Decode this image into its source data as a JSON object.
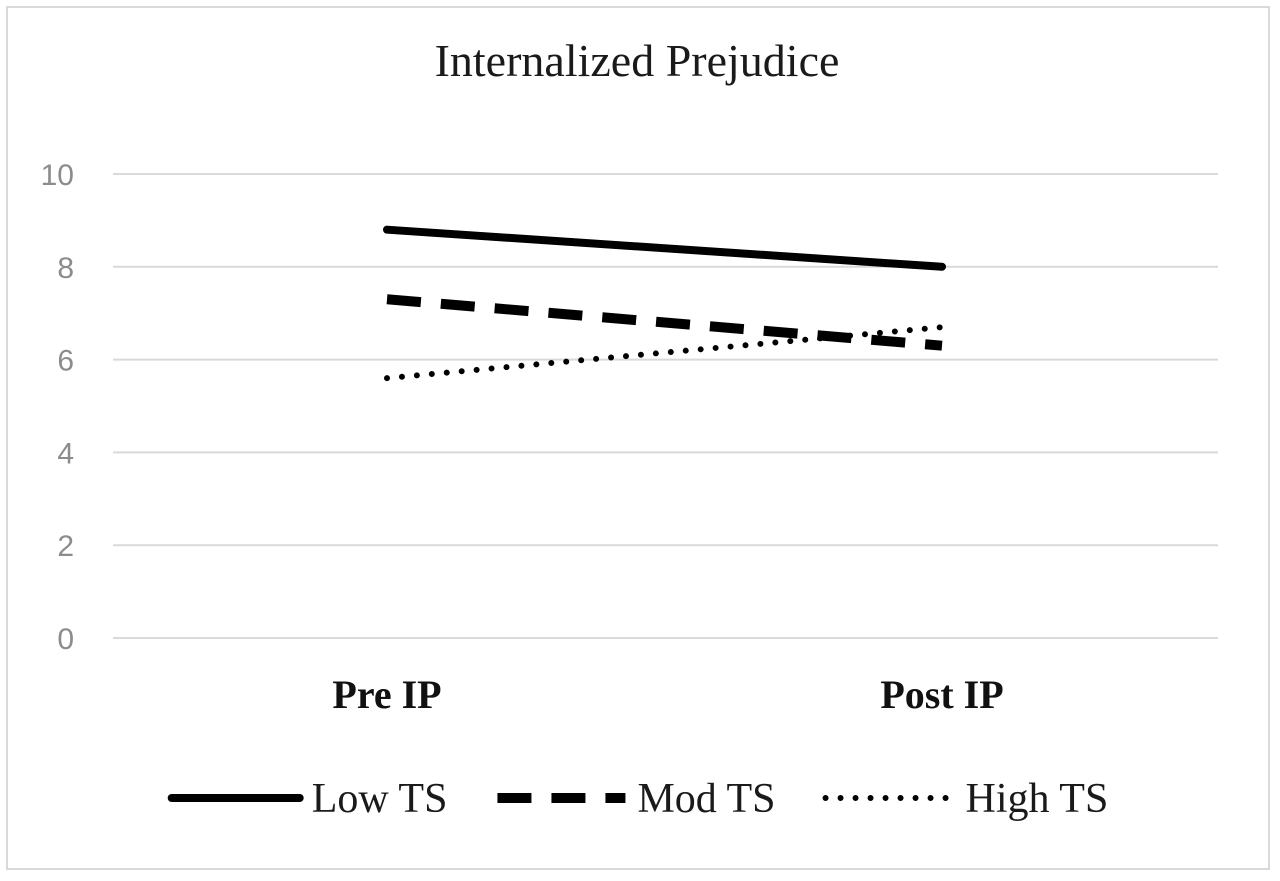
{
  "chart_data": {
    "type": "line",
    "title": "Internalized Prejudice",
    "categories": [
      "Pre IP",
      "Post IP"
    ],
    "ylim": [
      0,
      10
    ],
    "yticks": [
      "0",
      "2",
      "4",
      "6",
      "8",
      "10"
    ],
    "grid": true,
    "legend_position": "bottom",
    "series": [
      {
        "name": "Low TS",
        "values": [
          8.8,
          8.0
        ],
        "style": "solid",
        "color": "#000000"
      },
      {
        "name": "Mod TS",
        "values": [
          7.3,
          6.3
        ],
        "style": "dashed",
        "color": "#000000"
      },
      {
        "name": "High TS",
        "values": [
          5.6,
          6.7
        ],
        "style": "dotted",
        "color": "#000000"
      }
    ]
  }
}
